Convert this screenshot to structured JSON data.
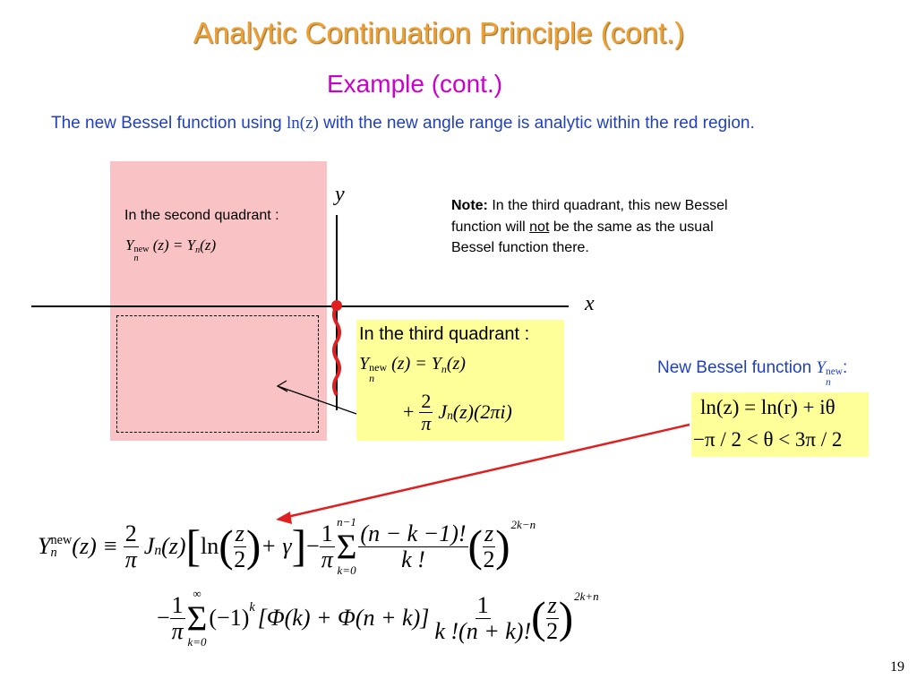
{
  "title": "Analytic Continuation Principle (cont.)",
  "subtitle": "Example (cont.)",
  "description": {
    "before": "The new Bessel function using ",
    "math": "ln(z)",
    "after": " with the new angle range is analytic within the red region."
  },
  "axes": {
    "x": "x",
    "y": "y"
  },
  "second_quadrant": {
    "label": "In the second quadrant :",
    "Y": "Y",
    "new": "new",
    "n": "n",
    "eq": "(z) = Y",
    "rhs": "(z)"
  },
  "third_quadrant": {
    "label": "In the third quadrant :",
    "Y": "Y",
    "new": "new",
    "n": "n",
    "eq": "(z) = Y",
    "rhs": "(z)",
    "plus": "+",
    "two": "2",
    "pi": "π",
    "J": "J",
    "tail": "(z)(2πi)"
  },
  "note": {
    "bold": "Note:",
    "line1": " In the third quadrant, this new Bessel",
    "line2a": "function will ",
    "not": "not",
    "line2b": " be the same as the usual",
    "line3": "Bessel function there."
  },
  "new_bessel": {
    "label": "New Bessel function ",
    "Y": "Y",
    "n": "n",
    "new": "new",
    "colon": ":"
  },
  "log_def": {
    "line1": "ln(z) = ln(r) + iθ",
    "line2": "−π / 2 < θ < 3π / 2"
  },
  "main_eq": {
    "Y": "Y",
    "new": "new",
    "n": "n",
    "lhs": "(z) ≡",
    "two": "2",
    "pi": "π",
    "J": "J",
    "z": "(z)",
    "lb": "[",
    "ln": "ln",
    "lp": "(",
    "zz": "z",
    "rp": ")",
    "gamma": "+ γ",
    "rb": "]",
    "minus": "−",
    "one": "1",
    "sum_top": "n−1",
    "sigma": "Σ",
    "sum_bot": "k=0",
    "num": "(n − k −1)!",
    "den": "k !",
    "exp1": "2k−n",
    "inf": "∞",
    "pow": "(−1)",
    "k": "k",
    "bracket": "[Φ(k) + Φ(n + k)]",
    "den2": "k !(n + k)!",
    "exp2": "2k+n"
  },
  "page_number": "19",
  "colors": {
    "title": "#f0a030",
    "subtitle": "#cc00cc",
    "text_blue": "#2040c0",
    "red_region": "#f9c3c6",
    "highlight": "#ffff99",
    "arrow_red": "#e02020"
  }
}
